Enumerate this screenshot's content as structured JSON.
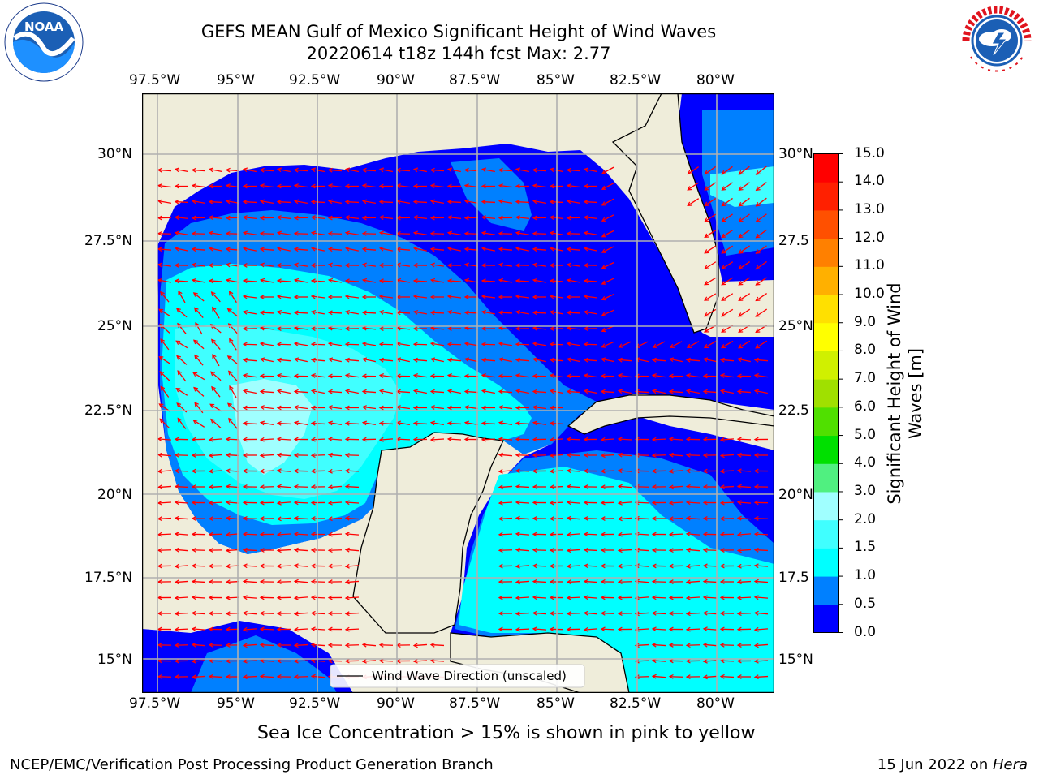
{
  "header": {
    "title_line1": "GEFS MEAN Gulf of Mexico Significant Height of Wind Waves",
    "title_line2": "20220614 t18z 144h fcst   Max: 2.77"
  },
  "logos": {
    "left": {
      "name": "noaa-logo",
      "text": "NOAA",
      "ring_text": "NATIONAL OCEANIC AND ATMOSPHERIC ADMINISTRATION · U.S. DEPARTMENT OF COMMERCE"
    },
    "right": {
      "name": "nws-logo",
      "ring_text": "NATIONAL WEATHER SERVICE"
    }
  },
  "map": {
    "lon_labels": [
      "97.5°W",
      "95°W",
      "92.5°W",
      "90°W",
      "87.5°W",
      "85°W",
      "82.5°W",
      "80°W"
    ],
    "lat_labels": [
      "30°N",
      "27.5°N",
      "25°N",
      "22.5°N",
      "20°N",
      "17.5°N",
      "15°N"
    ],
    "lat_labels_right": [
      "30°N",
      "27.5",
      "25°N",
      "22.5",
      "20°N",
      "17.5",
      "15°N"
    ],
    "legend_label": "Wind Wave Direction (unscaled)",
    "colors": {
      "land": "#efedda",
      "grid": "#b0b0b0",
      "arrow": "#ff0000"
    }
  },
  "colorbar": {
    "label": "Significant Height of Wind Waves [m]",
    "label_line1": "Significant Height of Wind",
    "label_line2": "Waves [m]",
    "ticks": [
      "0.0",
      "0.5",
      "1.0",
      "1.5",
      "2.0",
      "3.0",
      "4.0",
      "5.0",
      "6.0",
      "7.0",
      "8.0",
      "9.0",
      "10.0",
      "11.0",
      "12.0",
      "13.0",
      "14.0",
      "15.0"
    ],
    "colors": [
      "#0000ff",
      "#0080ff",
      "#00ffff",
      "#40ffff",
      "#a0ffff",
      "#50f080",
      "#00e000",
      "#50e000",
      "#a0e000",
      "#d0f000",
      "#ffff00",
      "#ffe000",
      "#ffb000",
      "#ff8000",
      "#ff5000",
      "#ff2000",
      "#ff0000"
    ]
  },
  "caption": "Sea Ice Concentration > 15% is shown in pink to yellow",
  "footer": {
    "left": "NCEP/EMC/Verification Post Processing Product Generation Branch",
    "right_date": "15 Jun 2022 on ",
    "right_machine": "Hera"
  }
}
